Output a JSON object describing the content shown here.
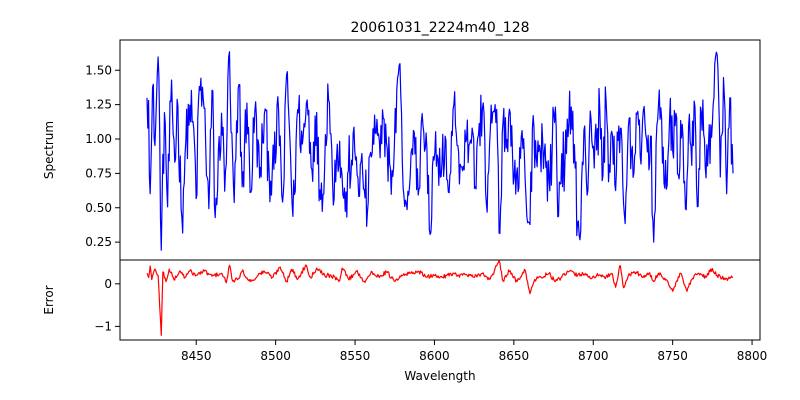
{
  "chart_data": {
    "type": "line",
    "title": "20061031_2224m40_128",
    "xlabel": "Wavelength",
    "xlim": [
      8402,
      8805
    ],
    "xticks": [
      8450,
      8500,
      8550,
      8600,
      8650,
      8700,
      8750,
      8800
    ],
    "grid": false,
    "panels": [
      {
        "name": "spectrum",
        "ylabel": "Spectrum",
        "ylim": [
          0.12,
          1.72
        ],
        "yticks": [
          0.25,
          0.5,
          0.75,
          1.0,
          1.25,
          1.5
        ],
        "ytick_labels": [
          "0.25",
          "0.50",
          "0.75",
          "1.00",
          "1.25",
          "1.50"
        ],
        "color": "#0000ff",
        "x_start": 8419,
        "x_end": 8788,
        "n_points": 740,
        "keypoints": [
          [
            8419,
            1.3
          ],
          [
            8420,
            1.28
          ],
          [
            8421,
            0.6
          ],
          [
            8423,
            1.4
          ],
          [
            8424,
            0.95
          ],
          [
            8426,
            1.6
          ],
          [
            8427,
            1.05
          ],
          [
            8428,
            0.18
          ],
          [
            8430,
            1.2
          ],
          [
            8432,
            0.5
          ],
          [
            8434,
            1.28
          ],
          [
            8437,
            0.85
          ],
          [
            8438,
            1.3
          ],
          [
            8441,
            0.42
          ],
          [
            8443,
            0.9
          ],
          [
            8446,
            1.25
          ],
          [
            8449,
            0.95
          ],
          [
            8450,
            0.55
          ],
          [
            8452,
            1.4
          ],
          [
            8455,
            1.22
          ],
          [
            8458,
            0.48
          ],
          [
            8460,
            1.38
          ],
          [
            8462,
            0.4
          ],
          [
            8466,
            1.2
          ],
          [
            8468,
            0.6
          ],
          [
            8471,
            1.66
          ],
          [
            8472,
            1.0
          ],
          [
            8474,
            0.52
          ],
          [
            8477,
            1.42
          ],
          [
            8479,
            0.62
          ],
          [
            8482,
            1.28
          ],
          [
            8484,
            0.58
          ],
          [
            8487,
            1.22
          ],
          [
            8490,
            0.7
          ],
          [
            8493,
            1.2
          ],
          [
            8496,
            0.75
          ],
          [
            8499,
            0.78
          ],
          [
            8502,
            1.22
          ],
          [
            8504,
            0.55
          ],
          [
            8505,
            0.62
          ],
          [
            8507,
            1.52
          ],
          [
            8509,
            1.0
          ],
          [
            8511,
            0.4
          ],
          [
            8514,
            1.25
          ],
          [
            8517,
            0.95
          ],
          [
            8520,
            1.3
          ],
          [
            8522,
            0.95
          ],
          [
            8523,
            0.75
          ],
          [
            8525,
            1.2
          ],
          [
            8528,
            0.6
          ],
          [
            8531,
            0.8
          ],
          [
            8533,
            1.45
          ],
          [
            8536,
            0.65
          ],
          [
            8539,
            0.98
          ],
          [
            8542,
            0.72
          ],
          [
            8544,
            0.45
          ],
          [
            8546,
            0.8
          ],
          [
            8548,
            0.85
          ],
          [
            8550,
            0.92
          ],
          [
            8552,
            0.7
          ],
          [
            8555,
            0.75
          ],
          [
            8558,
            0.45
          ],
          [
            8560,
            0.95
          ],
          [
            8563,
            1.05
          ],
          [
            8566,
            0.85
          ],
          [
            8568,
            1.18
          ],
          [
            8570,
            0.95
          ],
          [
            8572,
            0.8
          ],
          [
            8574,
            0.72
          ],
          [
            8577,
            1.5
          ],
          [
            8579,
            1.3
          ],
          [
            8581,
            0.5
          ],
          [
            8584,
            0.6
          ],
          [
            8587,
            1.1
          ],
          [
            8590,
            0.55
          ],
          [
            8592,
            1.2
          ],
          [
            8595,
            1.03
          ],
          [
            8597,
            0.25
          ],
          [
            8600,
            0.9
          ],
          [
            8602,
            0.88
          ],
          [
            8604,
            0.7
          ],
          [
            8607,
            1.05
          ],
          [
            8609,
            0.55
          ],
          [
            8612,
            1.28
          ],
          [
            8615,
            0.92
          ],
          [
            8617,
            0.78
          ],
          [
            8620,
            1.0
          ],
          [
            8622,
            0.95
          ],
          [
            8624,
            1.1
          ],
          [
            8626,
            0.58
          ],
          [
            8628,
            1.1
          ],
          [
            8631,
            1.28
          ],
          [
            8633,
            0.4
          ],
          [
            8635,
            1.05
          ],
          [
            8637,
            1.22
          ],
          [
            8640,
            0.95
          ],
          [
            8641,
            0.22
          ],
          [
            8643,
            1.15
          ],
          [
            8645,
            0.9
          ],
          [
            8647,
            1.25
          ],
          [
            8649,
            0.9
          ],
          [
            8651,
            0.6
          ],
          [
            8653,
            0.6
          ],
          [
            8655,
            1.1
          ],
          [
            8658,
            0.45
          ],
          [
            8660,
            0.3
          ],
          [
            8662,
            1.2
          ],
          [
            8664,
            0.85
          ],
          [
            8666,
            0.95
          ],
          [
            8668,
            1.0
          ],
          [
            8670,
            0.8
          ],
          [
            8672,
            0.7
          ],
          [
            8674,
            0.9
          ],
          [
            8676,
            1.3
          ],
          [
            8678,
            0.4
          ],
          [
            8680,
            0.9
          ],
          [
            8682,
            0.8
          ],
          [
            8684,
            1.0
          ],
          [
            8686,
            1.25
          ],
          [
            8688,
            1.0
          ],
          [
            8690,
            0.4
          ],
          [
            8692,
            0.28
          ],
          [
            8694,
            1.1
          ],
          [
            8696,
            0.55
          ],
          [
            8698,
            1.22
          ],
          [
            8700,
            0.95
          ],
          [
            8702,
            0.9
          ],
          [
            8704,
            1.25
          ],
          [
            8706,
            0.7
          ],
          [
            8708,
            1.3
          ],
          [
            8710,
            0.8
          ],
          [
            8712,
            1.05
          ],
          [
            8714,
            0.6
          ],
          [
            8716,
            1.1
          ],
          [
            8718,
            1.0
          ],
          [
            8720,
            0.35
          ],
          [
            8722,
            1.1
          ],
          [
            8725,
            0.7
          ],
          [
            8727,
            1.2
          ],
          [
            8730,
            0.8
          ],
          [
            8732,
            1.25
          ],
          [
            8734,
            0.9
          ],
          [
            8736,
            1.05
          ],
          [
            8738,
            0.22
          ],
          [
            8740,
            1.1
          ],
          [
            8742,
            1.15
          ],
          [
            8744,
            0.95
          ],
          [
            8746,
            0.62
          ],
          [
            8748,
            1.15
          ],
          [
            8750,
            0.9
          ],
          [
            8752,
            1.2
          ],
          [
            8754,
            0.7
          ],
          [
            8756,
            1.12
          ],
          [
            8758,
            0.48
          ],
          [
            8760,
            1.1
          ],
          [
            8762,
            0.8
          ],
          [
            8764,
            1.25
          ],
          [
            8766,
            0.5
          ],
          [
            8768,
            1.2
          ],
          [
            8770,
            1.0
          ],
          [
            8772,
            0.8
          ],
          [
            8774,
            1.1
          ],
          [
            8776,
            1.3
          ],
          [
            8778,
            1.62
          ],
          [
            8780,
            0.72
          ],
          [
            8782,
            1.45
          ],
          [
            8784,
            0.6
          ],
          [
            8786,
            1.3
          ],
          [
            8788,
            0.75
          ]
        ]
      },
      {
        "name": "error",
        "ylabel": "Error",
        "ylim": [
          -1.32,
          0.56
        ],
        "yticks": [
          0,
          -1
        ],
        "ytick_labels": [
          "0",
          "−1"
        ],
        "color": "#ff0000",
        "x_start": 8419,
        "x_end": 8788,
        "n_points": 740,
        "keypoints": [
          [
            8419,
            0.25
          ],
          [
            8420,
            0.15
          ],
          [
            8421,
            0.42
          ],
          [
            8422,
            0.1
          ],
          [
            8424,
            0.35
          ],
          [
            8426,
            0.2
          ],
          [
            8428,
            -1.22
          ],
          [
            8429,
            0.3
          ],
          [
            8431,
            0.05
          ],
          [
            8433,
            0.35
          ],
          [
            8436,
            0.1
          ],
          [
            8440,
            0.3
          ],
          [
            8443,
            0.15
          ],
          [
            8446,
            0.3
          ],
          [
            8450,
            0.2
          ],
          [
            8455,
            0.3
          ],
          [
            8460,
            0.18
          ],
          [
            8466,
            0.25
          ],
          [
            8469,
            0.02
          ],
          [
            8471,
            0.45
          ],
          [
            8473,
            0.05
          ],
          [
            8476,
            0.1
          ],
          [
            8479,
            0.3
          ],
          [
            8484,
            0.05
          ],
          [
            8489,
            0.2
          ],
          [
            8493,
            0.3
          ],
          [
            8498,
            0.15
          ],
          [
            8503,
            0.4
          ],
          [
            8507,
            0.05
          ],
          [
            8510,
            0.35
          ],
          [
            8514,
            0.1
          ],
          [
            8519,
            0.45
          ],
          [
            8522,
            0.15
          ],
          [
            8526,
            0.38
          ],
          [
            8531,
            0.2
          ],
          [
            8535,
            0.2
          ],
          [
            8540,
            0.05
          ],
          [
            8542,
            0.4
          ],
          [
            8546,
            0.1
          ],
          [
            8551,
            0.3
          ],
          [
            8556,
            0.05
          ],
          [
            8560,
            0.25
          ],
          [
            8565,
            0.18
          ],
          [
            8570,
            0.28
          ],
          [
            8575,
            0.05
          ],
          [
            8580,
            0.2
          ],
          [
            8585,
            0.25
          ],
          [
            8590,
            0.3
          ],
          [
            8595,
            0.15
          ],
          [
            8600,
            0.2
          ],
          [
            8605,
            0.15
          ],
          [
            8610,
            0.25
          ],
          [
            8615,
            0.2
          ],
          [
            8620,
            0.22
          ],
          [
            8625,
            0.15
          ],
          [
            8630,
            0.25
          ],
          [
            8635,
            0.1
          ],
          [
            8641,
            0.55
          ],
          [
            8643,
            0.05
          ],
          [
            8647,
            0.3
          ],
          [
            8652,
            0.05
          ],
          [
            8657,
            0.35
          ],
          [
            8660,
            -0.25
          ],
          [
            8663,
            0.1
          ],
          [
            8667,
            0.15
          ],
          [
            8672,
            0.25
          ],
          [
            8676,
            0.05
          ],
          [
            8680,
            0.15
          ],
          [
            8685,
            0.3
          ],
          [
            8690,
            0.2
          ],
          [
            8695,
            0.25
          ],
          [
            8699,
            0.12
          ],
          [
            8702,
            0.2
          ],
          [
            8707,
            0.15
          ],
          [
            8712,
            0.25
          ],
          [
            8714,
            -0.1
          ],
          [
            8717,
            0.45
          ],
          [
            8719,
            -0.1
          ],
          [
            8722,
            0.2
          ],
          [
            8727,
            0.28
          ],
          [
            8732,
            0.15
          ],
          [
            8735,
            0.25
          ],
          [
            8738,
            0.05
          ],
          [
            8741,
            0.25
          ],
          [
            8746,
            0.1
          ],
          [
            8750,
            -0.18
          ],
          [
            8755,
            0.25
          ],
          [
            8759,
            -0.18
          ],
          [
            8762,
            0.1
          ],
          [
            8766,
            0.25
          ],
          [
            8771,
            0.15
          ],
          [
            8774,
            0.35
          ],
          [
            8778,
            0.2
          ],
          [
            8783,
            0.1
          ],
          [
            8788,
            0.15
          ]
        ]
      }
    ]
  }
}
